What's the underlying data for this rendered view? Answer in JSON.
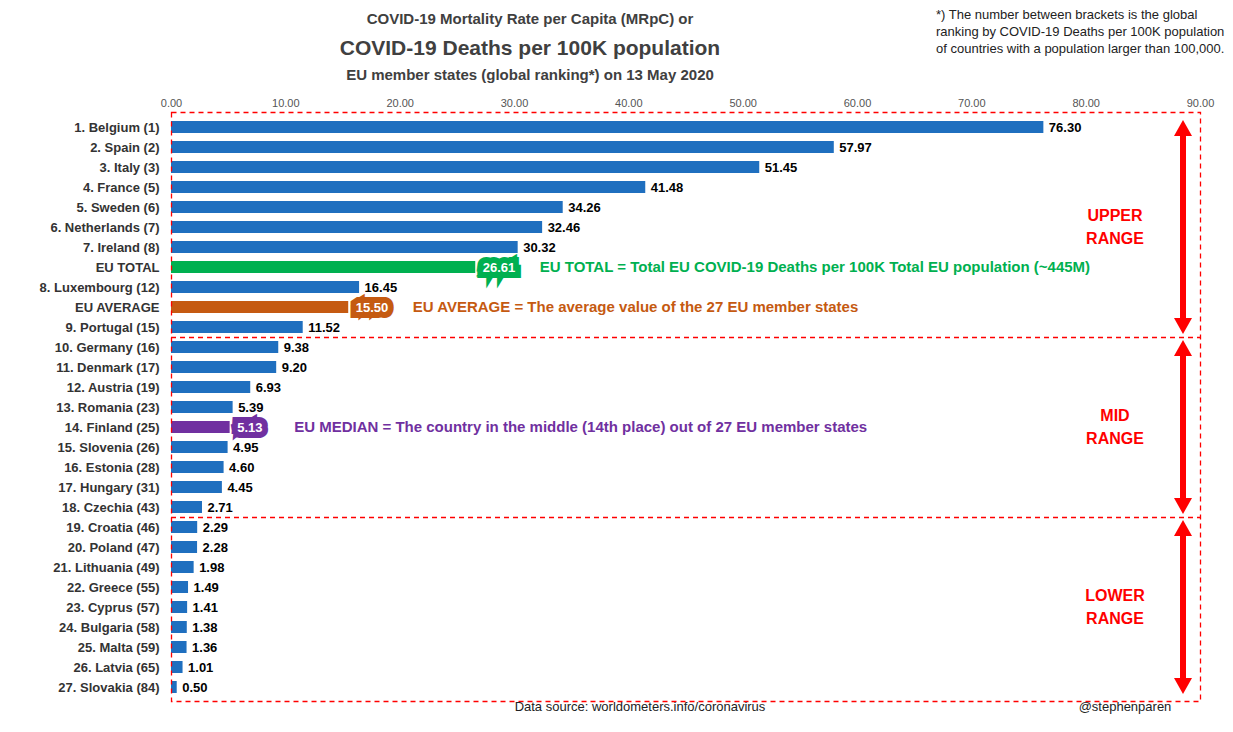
{
  "chart_data": {
    "type": "bar",
    "orientation": "horizontal",
    "title": [
      "COVID-19 Mortality Rate per Capita (MRpC) or",
      "COVID-19 Deaths per 100K population"
    ],
    "subtitle": "EU member states (global ranking*) on 13 May 2020",
    "footnote": "*) The number between brackets is the global ranking by COVID-19 Deaths per 100K population of countries with a population larger than 100,000.",
    "source": "Data source: worldometers.info/coronavirus",
    "credit": "@stephenparen",
    "categories": [
      "1. Belgium (1)",
      "2. Spain (2)",
      "3. Italy (3)",
      "4. France (5)",
      "5. Sweden (6)",
      "6. Netherlands (7)",
      "7. Ireland (8)",
      "EU TOTAL",
      "8. Luxembourg (12)",
      "EU AVERAGE",
      "9. Portugal (15)",
      "10. Germany (16)",
      "11. Denmark (17)",
      "12. Austria (19)",
      "13. Romania (23)",
      "14. Finland (25)",
      "15. Slovenia (26)",
      "16. Estonia (28)",
      "17. Hungary (31)",
      "18. Czechia (43)",
      "19. Croatia (46)",
      "20. Poland (47)",
      "21. Lithuania (49)",
      "22. Greece (55)",
      "23. Cyprus (57)",
      "24. Bulgaria (58)",
      "25. Malta (59)",
      "26. Latvia (65)",
      "27. Slovakia (84)"
    ],
    "values": [
      76.3,
      57.97,
      51.45,
      41.48,
      34.26,
      32.46,
      30.32,
      26.61,
      16.45,
      15.5,
      11.52,
      9.38,
      9.2,
      6.93,
      5.39,
      5.13,
      4.95,
      4.6,
      4.45,
      2.71,
      2.29,
      2.28,
      1.98,
      1.49,
      1.41,
      1.38,
      1.36,
      1.01,
      0.5
    ],
    "value_labels": [
      "76.30",
      "57.97",
      "51.45",
      "41.48",
      "34.26",
      "32.46",
      "30.32",
      "26.61",
      "16.45",
      "15.50",
      "11.52",
      "9.38",
      "9.20",
      "6.93",
      "5.39",
      "5.13",
      "4.95",
      "4.60",
      "4.45",
      "2.71",
      "2.29",
      "2.28",
      "1.98",
      "1.49",
      "1.41",
      "1.38",
      "1.36",
      "1.01",
      "0.50"
    ],
    "colors": [
      "#1F6FBF",
      "#1F6FBF",
      "#1F6FBF",
      "#1F6FBF",
      "#1F6FBF",
      "#1F6FBF",
      "#1F6FBF",
      "#00B050",
      "#1F6FBF",
      "#C55A11",
      "#1F6FBF",
      "#1F6FBF",
      "#1F6FBF",
      "#1F6FBF",
      "#1F6FBF",
      "#7030A0",
      "#1F6FBF",
      "#1F6FBF",
      "#1F6FBF",
      "#1F6FBF",
      "#1F6FBF",
      "#1F6FBF",
      "#1F6FBF",
      "#1F6FBF",
      "#1F6FBF",
      "#1F6FBF",
      "#1F6FBF",
      "#1F6FBF",
      "#1F6FBF"
    ],
    "xlim": [
      0,
      90
    ],
    "xticks": [
      {
        "value": 0,
        "label": "0.00"
      },
      {
        "value": 10,
        "label": "10.00"
      },
      {
        "value": 20,
        "label": "20.00"
      },
      {
        "value": 30,
        "label": "30.00"
      },
      {
        "value": 40,
        "label": "40.00"
      },
      {
        "value": 50,
        "label": "50.00"
      },
      {
        "value": 60,
        "label": "60.00"
      },
      {
        "value": 70,
        "label": "70.00"
      },
      {
        "value": 80,
        "label": "80.00"
      },
      {
        "value": 90,
        "label": "90.00"
      }
    ],
    "data_labels": true,
    "grid": false,
    "annotations": [
      {
        "category": "EU TOTAL",
        "text": "EU TOTAL = Total EU COVID-19 Deaths per 100K Total EU population (~445M)",
        "color": "#00B050"
      },
      {
        "category": "EU AVERAGE",
        "text": "EU AVERAGE = The average value of the 27 EU member states",
        "color": "#C55A11"
      },
      {
        "category": "14. Finland (25)",
        "text": "EU MEDIAN = The country in the middle (14th place) out of 27 EU member states",
        "color": "#7030A0"
      }
    ],
    "ranges": [
      {
        "label": "UPPER RANGE",
        "first": "1. Belgium (1)",
        "last": "9. Portugal (15)",
        "color": "#FF0000"
      },
      {
        "label": "MID RANGE",
        "first": "10. Germany (16)",
        "last": "18. Czechia (43)",
        "color": "#FF0000"
      },
      {
        "label": "LOWER RANGE",
        "first": "19. Croatia (46)",
        "last": "27. Slovakia (84)",
        "color": "#FF0000"
      }
    ]
  }
}
